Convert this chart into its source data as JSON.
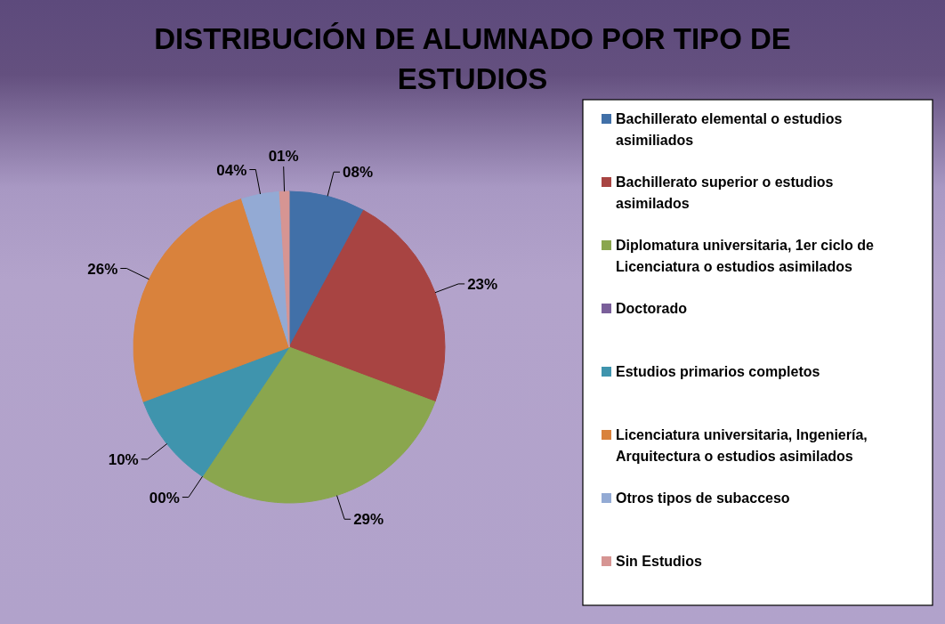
{
  "chart_data": {
    "type": "pie",
    "title": "DISTRIBUCIÓN DE ALUMNADO POR TIPO DE ESTUDIOS",
    "categories": [
      "Bachillerato elemental o estudios asimiliados",
      "Bachillerato superior o estudios asimilados",
      "Diplomatura universitaria, 1er ciclo de Licenciatura o estudios asimilados",
      "Doctorado",
      "Estudios primarios completos",
      "Licenciatura universitaria, Ingeniería, Arquitectura o estudios asimilados",
      "Otros tipos de subacceso",
      "Sin Estudios"
    ],
    "values": [
      8,
      23,
      29,
      0,
      10,
      26,
      4,
      1
    ],
    "value_labels": [
      "08%",
      "23%",
      "29%",
      "00%",
      "10%",
      "26%",
      "04%",
      "01%"
    ],
    "colors": [
      "#4170a8",
      "#a84442",
      "#8aa64e",
      "#7a5f9a",
      "#3f94ad",
      "#d9823c",
      "#93aad4",
      "#d69593"
    ],
    "legend": "right"
  }
}
